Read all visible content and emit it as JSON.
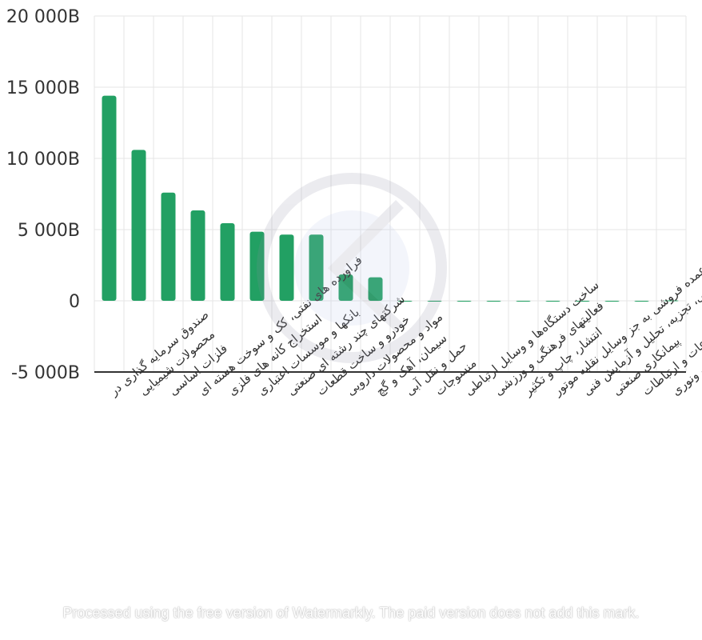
{
  "chart_data": {
    "type": "bar",
    "categories": [
      "صندوق سرمایه گذاری در",
      "محصولات شیمیایی",
      "فلزات اساسی",
      "فراورده های نفتی، کک و سوخت هسته ای",
      "استخراج کانه های فلزی",
      "بانکها و موسسات اعتباری",
      "شرکتهای چند رشته ای صنعتی",
      "خودرو و ساخت قطعات",
      "مواد و محصولات دارویی",
      "سیمان، آهک و گچ",
      "حمل و نقل آبی",
      "منسوجات",
      "ساخت دستگاه‌ها و وسایل ارتباطی",
      "فعالیتهای فرهنگی و ورزشی",
      "انتشار، چاپ و تکثیر",
      "تجارت عمده فروشی به جز وسایل نقلیه موتور",
      "فعالیت مهندسی، تجزیه، تحلیل و آزمایش فنی",
      "پیمانکاری صنعتی",
      "اطلاعات و ارتباطات",
      "تولید محصولات کامپیوتری الکترونیکی ونوری"
    ],
    "series": [
      {
        "values": [
          14400,
          10600,
          7600,
          6350,
          5450,
          4850,
          4650,
          4650,
          1850,
          1650,
          0,
          0,
          0,
          0,
          0,
          0,
          0,
          0,
          0,
          30
        ]
      }
    ],
    "ylim": [
      -5000,
      20000
    ],
    "yticks": [
      "-5 000B",
      "0",
      "5 000B",
      "10 000B",
      "15 000B",
      "20 000B"
    ],
    "ytick_values": [
      -5000,
      0,
      5000,
      10000,
      15000,
      20000
    ],
    "grid": true,
    "colors": {
      "bar": "#22a063",
      "grid": "#e6e6e6",
      "axis": "#333333"
    }
  },
  "watermark": {
    "footer_text": "Processed using the free version of Watermarkly. The paid version does not add this mark."
  }
}
